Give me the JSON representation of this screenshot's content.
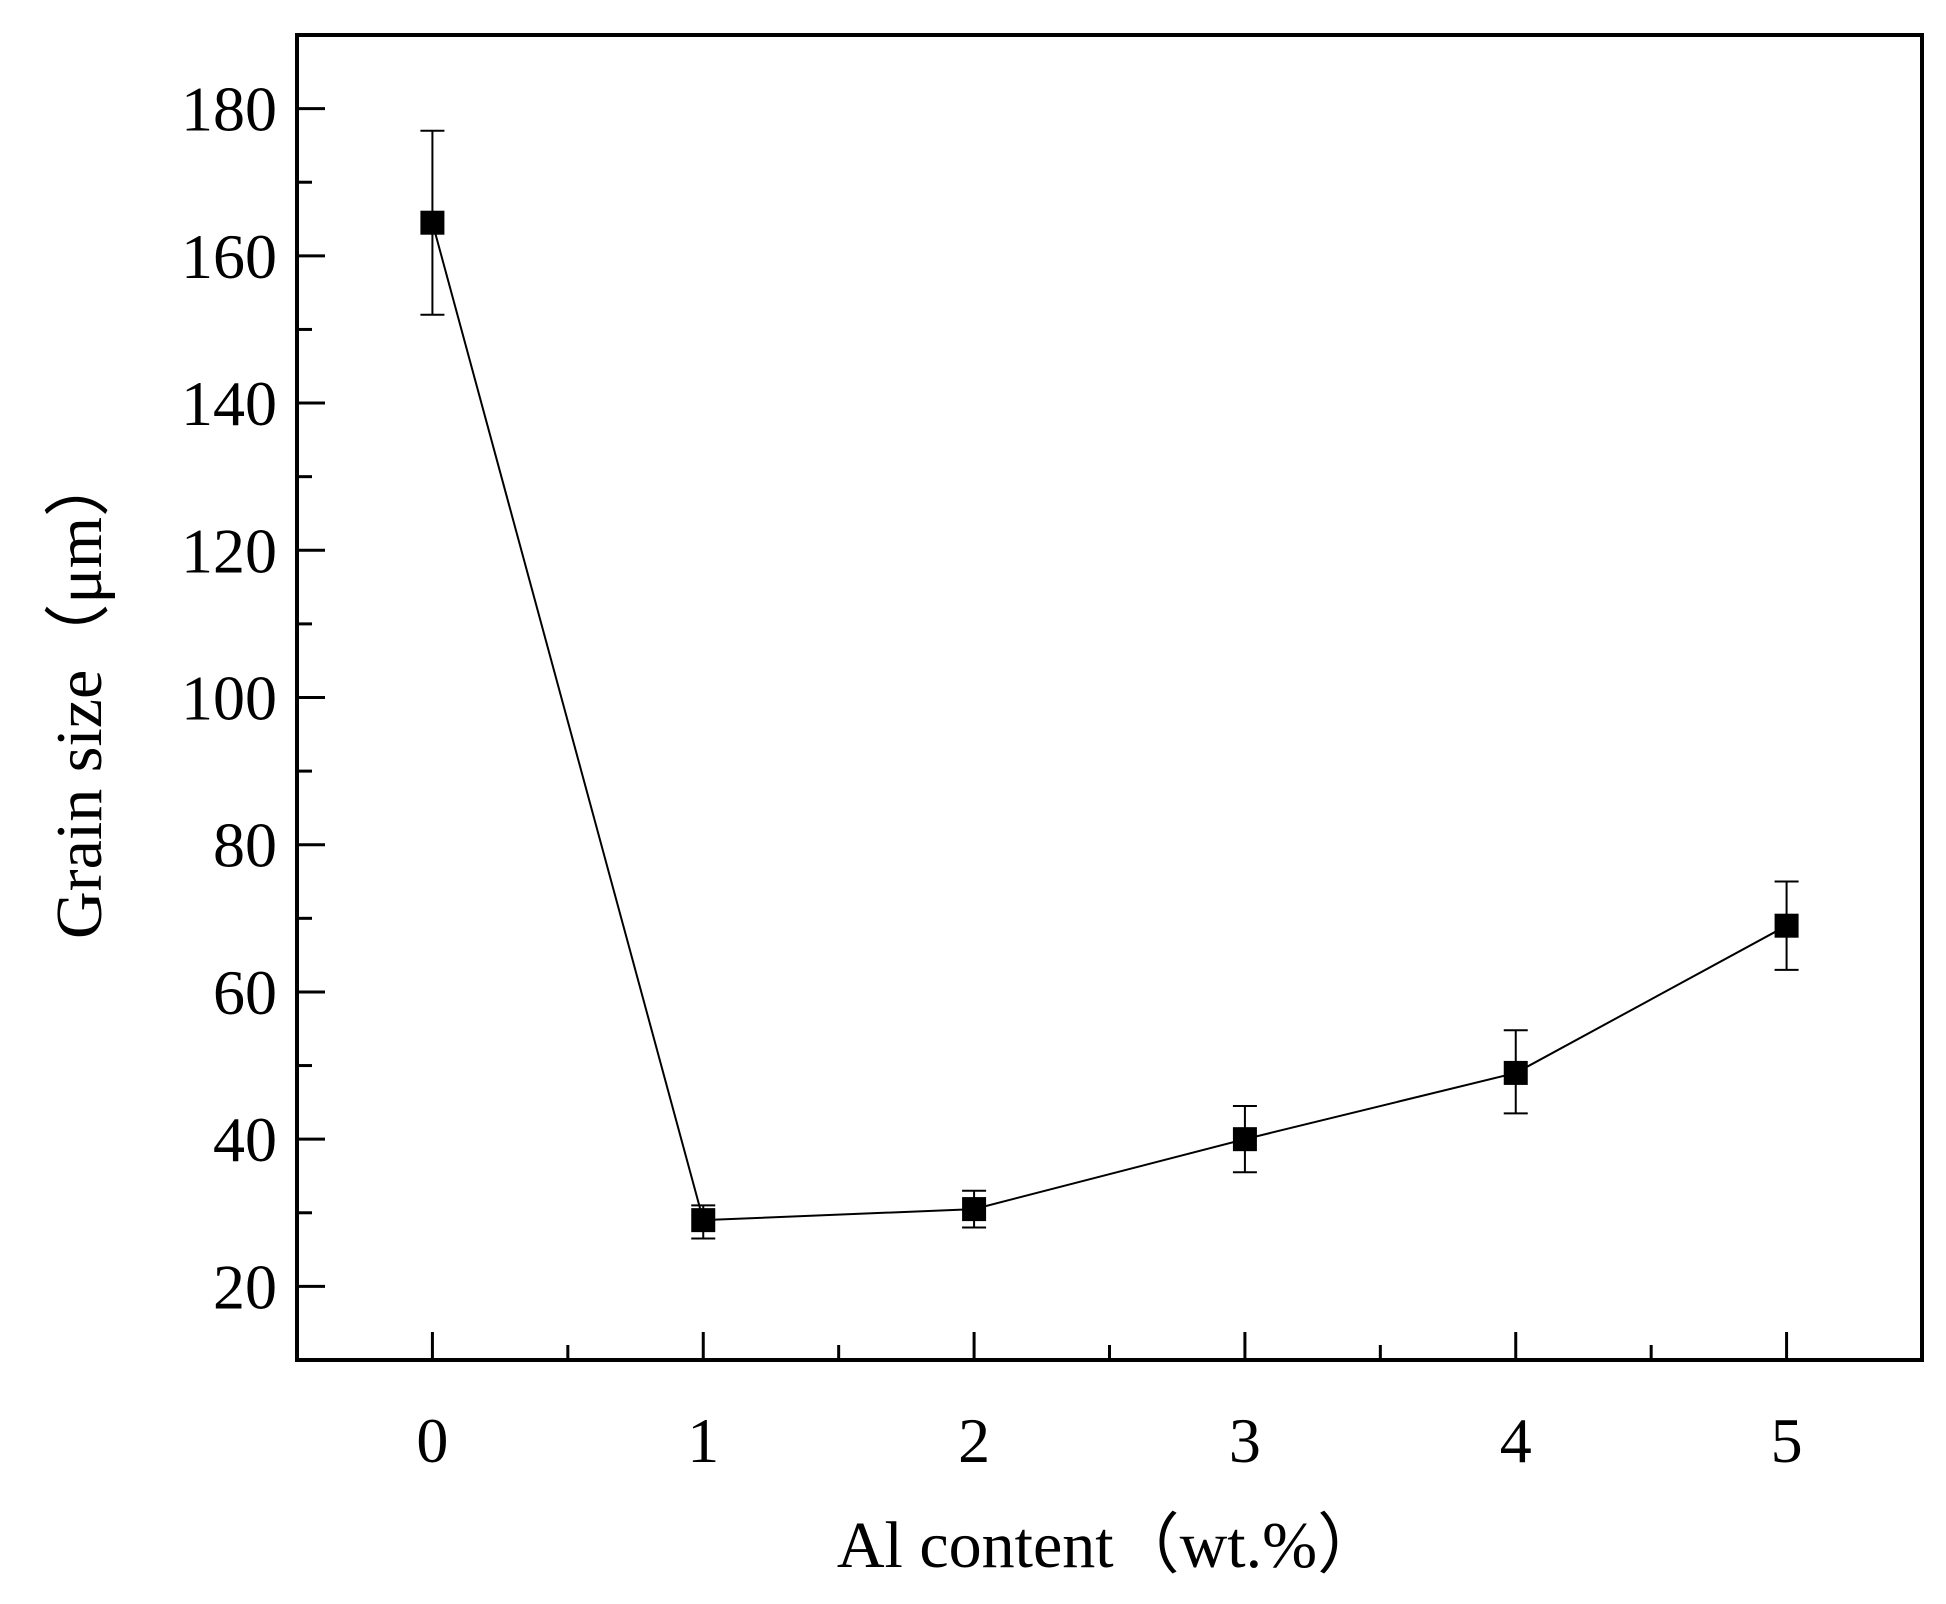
{
  "chart_data": {
    "type": "line",
    "title": "",
    "xlabel": "Al content（wt.%）",
    "ylabel": "Grain size（μm）",
    "xlim": [
      -0.5,
      5.5
    ],
    "ylim": [
      10,
      190
    ],
    "x_ticks": [
      0,
      1,
      2,
      3,
      4,
      5
    ],
    "x_tick_labels": [
      "0",
      "1",
      "2",
      "3",
      "4",
      "5"
    ],
    "x_minor_ticks": [
      0.5,
      1.5,
      2.5,
      3.5,
      4.5
    ],
    "y_ticks": [
      20,
      40,
      60,
      80,
      100,
      120,
      140,
      160,
      180
    ],
    "y_tick_labels": [
      "20",
      "40",
      "60",
      "80",
      "100",
      "120",
      "140",
      "160",
      "180"
    ],
    "y_minor_ticks": [
      30,
      50,
      70,
      90,
      110,
      130,
      150,
      170
    ],
    "grid": false,
    "legend": "none",
    "marker": "square",
    "color": "#000000",
    "series": [
      {
        "x": [
          0,
          1,
          2,
          3,
          4,
          5
        ],
        "y": [
          164.5,
          29,
          30.5,
          40,
          49,
          69
        ],
        "error_low": [
          152,
          26.5,
          28,
          35.5,
          43.5,
          63
        ],
        "error_high": [
          177,
          31,
          33,
          44.5,
          54.8,
          75
        ]
      }
    ]
  }
}
